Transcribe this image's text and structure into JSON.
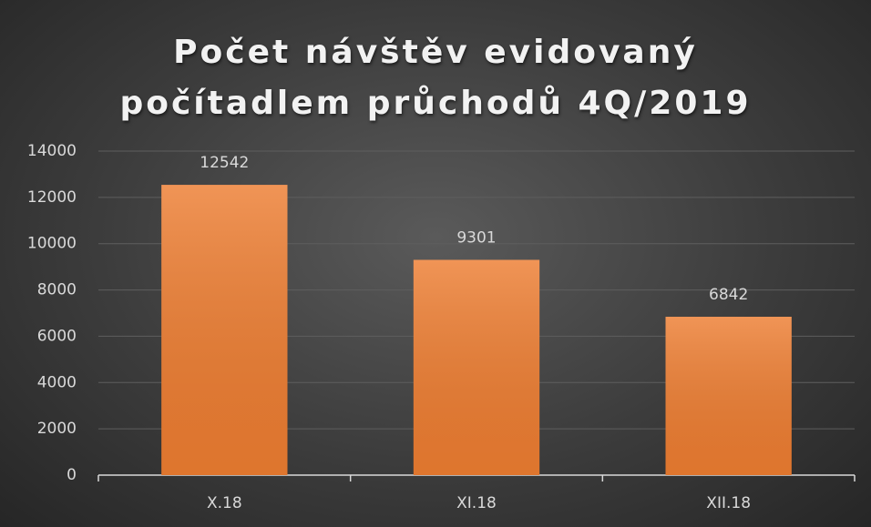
{
  "chart_data": {
    "type": "bar",
    "title": "Počet návštěv evidovaný počítadlem průchodů 4Q/2019",
    "categories": [
      "X.18",
      "XI.18",
      "XII.18"
    ],
    "values": [
      12542,
      9301,
      6842
    ],
    "color": "#ed7d31",
    "ylim": [
      0,
      14000
    ],
    "yticks": [
      0,
      2000,
      4000,
      6000,
      8000,
      10000,
      12000,
      14000
    ],
    "grid": true
  }
}
